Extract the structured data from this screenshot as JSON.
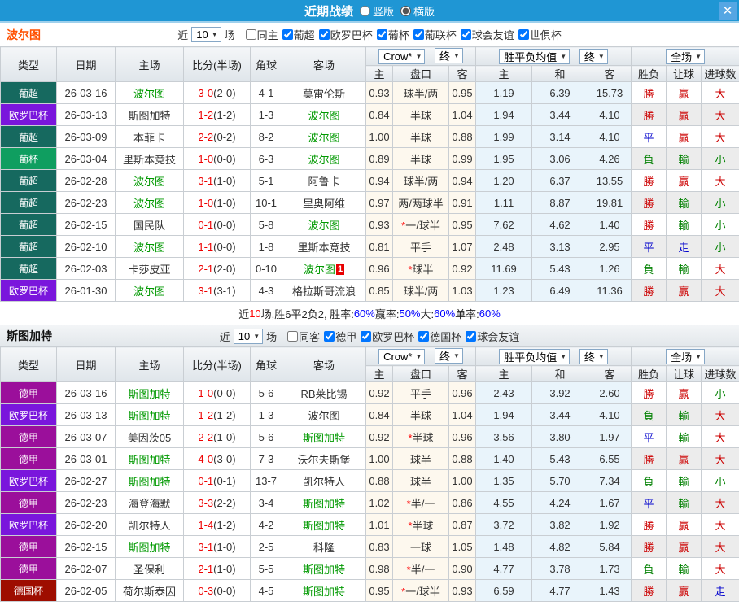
{
  "titlebar": {
    "title": "近期战绩",
    "radio_vertical": "竖版",
    "radio_horizontal": "横版",
    "close": "✕"
  },
  "table_columns": {
    "type": "类型",
    "date": "日期",
    "home": "主场",
    "score": "比分(半场)",
    "corner": "角球",
    "away": "客场",
    "h_home": "主",
    "h_line": "盘口",
    "h_away": "客",
    "e_home": "主",
    "e_draw": "和",
    "e_away": "客",
    "res_wdl": "胜负",
    "res_handicap": "让球",
    "res_goals": "进球数"
  },
  "header_selects": {
    "crow": "Crow*",
    "final1": "终",
    "avg": "胜平负均值",
    "final2": "终",
    "scope": "全场"
  },
  "league_colors": {
    "葡超": "#16695f",
    "欧罗巴杯": "#7a16dc",
    "葡杯": "#0f9e60",
    "德甲": "#9b0f9b",
    "德国杯": "#9e0d00"
  },
  "accent_colors": {
    "titlebar": "#1f96d4",
    "team_self_green": "#009900",
    "win_red": "#cc0000",
    "draw_blue": "#0000cc",
    "lose_green": "#008000"
  },
  "sections": [
    {
      "team": "波尔图",
      "filter": {
        "prefix": "近",
        "matches_value": "10",
        "suffix": "场",
        "same_label": "同主",
        "same_checked": false,
        "leagues": [
          {
            "label": "葡超",
            "checked": true
          },
          {
            "label": "欧罗巴杯",
            "checked": true
          },
          {
            "label": "葡杯",
            "checked": true
          },
          {
            "label": "葡联杯",
            "checked": true
          },
          {
            "label": "球会友谊",
            "checked": true
          },
          {
            "label": "世俱杯",
            "checked": true
          }
        ]
      },
      "rows": [
        {
          "league": "葡超",
          "date": "26-03-16",
          "home": "波尔图",
          "home_self": true,
          "ft": "3-0",
          "ht": "(2-0)",
          "corner": "4-1",
          "away": "莫雷伦斯",
          "away_self": false,
          "away_redcard": "",
          "hh": "0.93",
          "line": "球半/两",
          "line_star": false,
          "ha": "0.95",
          "eh": "1.19",
          "ed": "6.39",
          "ea": "15.73",
          "wdl": "勝",
          "hc": "贏",
          "goals": "大"
        },
        {
          "league": "欧罗巴杯",
          "date": "26-03-13",
          "home": "斯图加特",
          "home_self": false,
          "ft": "1-2",
          "ht": "(1-2)",
          "corner": "1-3",
          "away": "波尔图",
          "away_self": true,
          "away_redcard": "",
          "hh": "0.84",
          "line": "半球",
          "line_star": false,
          "ha": "1.04",
          "eh": "1.94",
          "ed": "3.44",
          "ea": "4.10",
          "wdl": "勝",
          "hc": "贏",
          "goals": "大"
        },
        {
          "league": "葡超",
          "date": "26-03-09",
          "home": "本菲卡",
          "home_self": false,
          "ft": "2-2",
          "ht": "(0-2)",
          "corner": "8-2",
          "away": "波尔图",
          "away_self": true,
          "away_redcard": "",
          "hh": "1.00",
          "line": "半球",
          "line_star": false,
          "ha": "0.88",
          "eh": "1.99",
          "ed": "3.14",
          "ea": "4.10",
          "wdl": "平",
          "hc": "贏",
          "goals": "大"
        },
        {
          "league": "葡杯",
          "date": "26-03-04",
          "home": "里斯本竞技",
          "home_self": false,
          "ft": "1-0",
          "ht": "(0-0)",
          "corner": "6-3",
          "away": "波尔图",
          "away_self": true,
          "away_redcard": "",
          "hh": "0.89",
          "line": "半球",
          "line_star": false,
          "ha": "0.99",
          "eh": "1.95",
          "ed": "3.06",
          "ea": "4.26",
          "wdl": "負",
          "hc": "輸",
          "goals": "小"
        },
        {
          "league": "葡超",
          "date": "26-02-28",
          "home": "波尔图",
          "home_self": true,
          "ft": "3-1",
          "ht": "(1-0)",
          "corner": "5-1",
          "away": "阿鲁卡",
          "away_self": false,
          "away_redcard": "",
          "hh": "0.94",
          "line": "球半/两",
          "line_star": false,
          "ha": "0.94",
          "eh": "1.20",
          "ed": "6.37",
          "ea": "13.55",
          "wdl": "勝",
          "hc": "贏",
          "goals": "大"
        },
        {
          "league": "葡超",
          "date": "26-02-23",
          "home": "波尔图",
          "home_self": true,
          "ft": "1-0",
          "ht": "(1-0)",
          "corner": "10-1",
          "away": "里奥阿维",
          "away_self": false,
          "away_redcard": "",
          "hh": "0.97",
          "line": "两/两球半",
          "line_star": false,
          "ha": "0.91",
          "eh": "1.11",
          "ed": "8.87",
          "ea": "19.81",
          "wdl": "勝",
          "hc": "輸",
          "goals": "小"
        },
        {
          "league": "葡超",
          "date": "26-02-15",
          "home": "国民队",
          "home_self": false,
          "ft": "0-1",
          "ht": "(0-0)",
          "corner": "5-8",
          "away": "波尔图",
          "away_self": true,
          "away_redcard": "",
          "hh": "0.93",
          "line": "一/球半",
          "line_star": true,
          "ha": "0.95",
          "eh": "7.62",
          "ed": "4.62",
          "ea": "1.40",
          "wdl": "勝",
          "hc": "輸",
          "goals": "小"
        },
        {
          "league": "葡超",
          "date": "26-02-10",
          "home": "波尔图",
          "home_self": true,
          "ft": "1-1",
          "ht": "(0-0)",
          "corner": "1-8",
          "away": "里斯本竞技",
          "away_self": false,
          "away_redcard": "",
          "hh": "0.81",
          "line": "平手",
          "line_star": false,
          "ha": "1.07",
          "eh": "2.48",
          "ed": "3.13",
          "ea": "2.95",
          "wdl": "平",
          "hc": "走",
          "goals": "小"
        },
        {
          "league": "葡超",
          "date": "26-02-03",
          "home": "卡莎皮亚",
          "home_self": false,
          "ft": "2-1",
          "ht": "(2-0)",
          "corner": "0-10",
          "away": "波尔图",
          "away_self": true,
          "away_redcard": "1",
          "hh": "0.96",
          "line": "球半",
          "line_star": true,
          "ha": "0.92",
          "eh": "11.69",
          "ed": "5.43",
          "ea": "1.26",
          "wdl": "負",
          "hc": "輸",
          "goals": "大"
        },
        {
          "league": "欧罗巴杯",
          "date": "26-01-30",
          "home": "波尔图",
          "home_self": true,
          "ft": "3-1",
          "ht": "(3-1)",
          "corner": "4-3",
          "away": "格拉斯哥流浪",
          "away_self": false,
          "away_redcard": "",
          "hh": "0.85",
          "line": "球半/两",
          "line_star": false,
          "ha": "1.03",
          "eh": "1.23",
          "ed": "6.49",
          "ea": "11.36",
          "wdl": "勝",
          "hc": "贏",
          "goals": "大"
        }
      ],
      "summary": [
        {
          "t": "近",
          "c": "k"
        },
        {
          "t": "10",
          "c": "red"
        },
        {
          "t": "场,胜6平2负2, 胜率:",
          "c": "k"
        },
        {
          "t": "60%",
          "c": "blue"
        },
        {
          "t": " 赢率:",
          "c": "k"
        },
        {
          "t": "50%",
          "c": "blue"
        },
        {
          "t": " 大:",
          "c": "k"
        },
        {
          "t": "60%",
          "c": "blue"
        },
        {
          "t": " 单率:",
          "c": "k"
        },
        {
          "t": "60%",
          "c": "blue"
        }
      ]
    },
    {
      "team": "斯图加特",
      "filter": {
        "prefix": "近",
        "matches_value": "10",
        "suffix": "场",
        "same_label": "同客",
        "same_checked": false,
        "leagues": [
          {
            "label": "德甲",
            "checked": true
          },
          {
            "label": "欧罗巴杯",
            "checked": true
          },
          {
            "label": "德国杯",
            "checked": true
          },
          {
            "label": "球会友谊",
            "checked": true
          }
        ]
      },
      "rows": [
        {
          "league": "德甲",
          "date": "26-03-16",
          "home": "斯图加特",
          "home_self": true,
          "ft": "1-0",
          "ht": "(0-0)",
          "corner": "5-6",
          "away": "RB莱比锡",
          "away_self": false,
          "away_redcard": "",
          "hh": "0.92",
          "line": "平手",
          "line_star": false,
          "ha": "0.96",
          "eh": "2.43",
          "ed": "3.92",
          "ea": "2.60",
          "wdl": "勝",
          "hc": "贏",
          "goals": "小"
        },
        {
          "league": "欧罗巴杯",
          "date": "26-03-13",
          "home": "斯图加特",
          "home_self": true,
          "ft": "1-2",
          "ht": "(1-2)",
          "corner": "1-3",
          "away": "波尔图",
          "away_self": false,
          "away_redcard": "",
          "hh": "0.84",
          "line": "半球",
          "line_star": false,
          "ha": "1.04",
          "eh": "1.94",
          "ed": "3.44",
          "ea": "4.10",
          "wdl": "負",
          "hc": "輸",
          "goals": "大"
        },
        {
          "league": "德甲",
          "date": "26-03-07",
          "home": "美因茨05",
          "home_self": false,
          "ft": "2-2",
          "ht": "(1-0)",
          "corner": "5-6",
          "away": "斯图加特",
          "away_self": true,
          "away_redcard": "",
          "hh": "0.92",
          "line": "半球",
          "line_star": true,
          "ha": "0.96",
          "eh": "3.56",
          "ed": "3.80",
          "ea": "1.97",
          "wdl": "平",
          "hc": "輸",
          "goals": "大"
        },
        {
          "league": "德甲",
          "date": "26-03-01",
          "home": "斯图加特",
          "home_self": true,
          "ft": "4-0",
          "ht": "(3-0)",
          "corner": "7-3",
          "away": "沃尔夫斯堡",
          "away_self": false,
          "away_redcard": "",
          "hh": "1.00",
          "line": "球半",
          "line_star": false,
          "ha": "0.88",
          "eh": "1.40",
          "ed": "5.43",
          "ea": "6.55",
          "wdl": "勝",
          "hc": "贏",
          "goals": "大"
        },
        {
          "league": "欧罗巴杯",
          "date": "26-02-27",
          "home": "斯图加特",
          "home_self": true,
          "ft": "0-1",
          "ht": "(0-1)",
          "corner": "13-7",
          "away": "凯尔特人",
          "away_self": false,
          "away_redcard": "",
          "hh": "0.88",
          "line": "球半",
          "line_star": false,
          "ha": "1.00",
          "eh": "1.35",
          "ed": "5.70",
          "ea": "7.34",
          "wdl": "負",
          "hc": "輸",
          "goals": "小"
        },
        {
          "league": "德甲",
          "date": "26-02-23",
          "home": "海登海默",
          "home_self": false,
          "ft": "3-3",
          "ht": "(2-2)",
          "corner": "3-4",
          "away": "斯图加特",
          "away_self": true,
          "away_redcard": "",
          "hh": "1.02",
          "line": "半/一",
          "line_star": true,
          "ha": "0.86",
          "eh": "4.55",
          "ed": "4.24",
          "ea": "1.67",
          "wdl": "平",
          "hc": "輸",
          "goals": "大"
        },
        {
          "league": "欧罗巴杯",
          "date": "26-02-20",
          "home": "凯尔特人",
          "home_self": false,
          "ft": "1-4",
          "ht": "(1-2)",
          "corner": "4-2",
          "away": "斯图加特",
          "away_self": true,
          "away_redcard": "",
          "hh": "1.01",
          "line": "半球",
          "line_star": true,
          "ha": "0.87",
          "eh": "3.72",
          "ed": "3.82",
          "ea": "1.92",
          "wdl": "勝",
          "hc": "贏",
          "goals": "大"
        },
        {
          "league": "德甲",
          "date": "26-02-15",
          "home": "斯图加特",
          "home_self": true,
          "ft": "3-1",
          "ht": "(1-0)",
          "corner": "2-5",
          "away": "科隆",
          "away_self": false,
          "away_redcard": "",
          "hh": "0.83",
          "line": "一球",
          "line_star": false,
          "ha": "1.05",
          "eh": "1.48",
          "ed": "4.82",
          "ea": "5.84",
          "wdl": "勝",
          "hc": "贏",
          "goals": "大"
        },
        {
          "league": "德甲",
          "date": "26-02-07",
          "home": "圣保利",
          "home_self": false,
          "ft": "2-1",
          "ht": "(1-0)",
          "corner": "5-5",
          "away": "斯图加特",
          "away_self": true,
          "away_redcard": "",
          "hh": "0.98",
          "line": "半/一",
          "line_star": true,
          "ha": "0.90",
          "eh": "4.77",
          "ed": "3.78",
          "ea": "1.73",
          "wdl": "負",
          "hc": "輸",
          "goals": "大"
        },
        {
          "league": "德国杯",
          "date": "26-02-05",
          "home": "荷尔斯泰因",
          "home_self": false,
          "ft": "0-3",
          "ht": "(0-0)",
          "corner": "4-5",
          "away": "斯图加特",
          "away_self": true,
          "away_redcard": "",
          "hh": "0.95",
          "line": "一/球半",
          "line_star": true,
          "ha": "0.93",
          "eh": "6.59",
          "ed": "4.77",
          "ea": "1.43",
          "wdl": "勝",
          "hc": "贏",
          "goals": "走"
        }
      ]
    }
  ]
}
